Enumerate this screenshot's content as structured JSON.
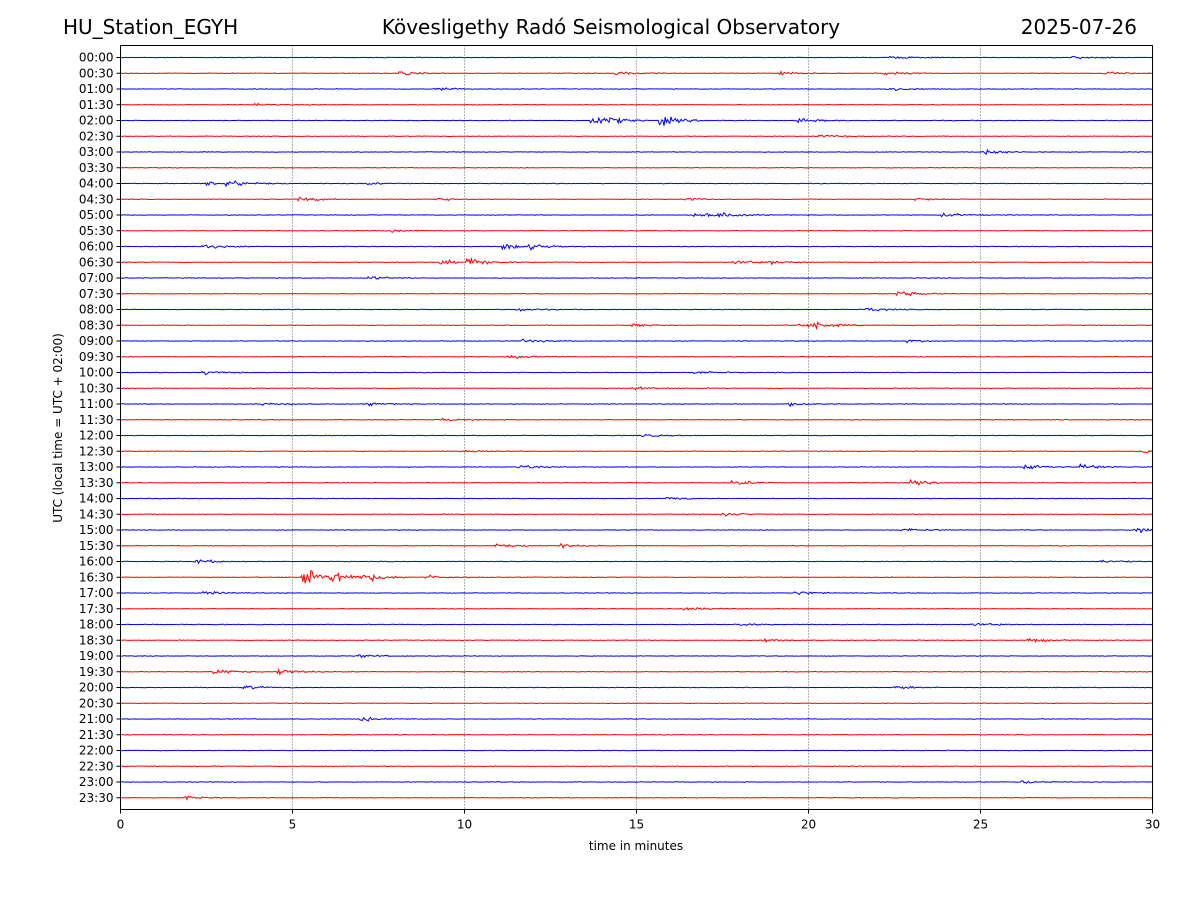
{
  "header": {
    "station": "HU_Station_EGYH",
    "title": "Kövesligethy Radó Seismological Observatory",
    "date": "2025-07-26"
  },
  "chart_data": {
    "type": "line",
    "xlabel": "time in minutes",
    "ylabel": "UTC (local time = UTC + 02:00)",
    "xlim": [
      0,
      30
    ],
    "x_ticks": [
      "0",
      "5",
      "10",
      "15",
      "20",
      "25",
      "30"
    ],
    "grid": "vertical dotted at 5-minute intervals",
    "trace_colors": [
      "#0000ff",
      "#ff0000"
    ],
    "traces": [
      {
        "label": "00:00",
        "events": [
          [
            22.5,
            0.8
          ],
          [
            27.8,
            0.8
          ]
        ]
      },
      {
        "label": "00:30",
        "events": [
          [
            8.2,
            1.0
          ],
          [
            14.5,
            0.8
          ],
          [
            19.3,
            1.0
          ],
          [
            22.3,
            1.0
          ],
          [
            28.7,
            0.8
          ]
        ]
      },
      {
        "label": "01:00",
        "events": [
          [
            9.2,
            0.8
          ],
          [
            22.4,
            0.9
          ]
        ]
      },
      {
        "label": "01:30",
        "events": [
          [
            4.0,
            0.7
          ]
        ]
      },
      {
        "label": "02:00",
        "events": [
          [
            13.8,
            2.6
          ],
          [
            14.3,
            0.9
          ],
          [
            15.8,
            2.4
          ],
          [
            19.8,
            1.2
          ]
        ]
      },
      {
        "label": "02:30",
        "events": [
          [
            20.4,
            0.9
          ]
        ]
      },
      {
        "label": "03:00",
        "events": [
          [
            25.2,
            1.4
          ]
        ]
      },
      {
        "label": "03:30",
        "events": []
      },
      {
        "label": "04:00",
        "events": [
          [
            3.2,
            1.8
          ],
          [
            2.6,
            0.9
          ],
          [
            7.2,
            0.8
          ]
        ]
      },
      {
        "label": "04:30",
        "events": [
          [
            5.3,
            1.5
          ],
          [
            9.2,
            0.9
          ],
          [
            16.5,
            0.8
          ],
          [
            23.2,
            0.8
          ]
        ]
      },
      {
        "label": "05:00",
        "events": [
          [
            16.8,
            1.8
          ],
          [
            17.5,
            1.2
          ],
          [
            24.0,
            1.0
          ]
        ]
      },
      {
        "label": "05:30",
        "events": [
          [
            8.0,
            0.7
          ]
        ]
      },
      {
        "label": "06:00",
        "events": [
          [
            2.5,
            1.3
          ],
          [
            11.2,
            1.8
          ],
          [
            12.0,
            1.4
          ]
        ]
      },
      {
        "label": "06:30",
        "events": [
          [
            10.2,
            2.2
          ],
          [
            9.4,
            1.3
          ],
          [
            17.9,
            1.4
          ],
          [
            19.0,
            0.9
          ]
        ]
      },
      {
        "label": "07:00",
        "events": [
          [
            7.3,
            0.9
          ]
        ]
      },
      {
        "label": "07:30",
        "events": [
          [
            22.7,
            1.5
          ]
        ]
      },
      {
        "label": "08:00",
        "events": [
          [
            11.6,
            0.9
          ],
          [
            21.8,
            1.0
          ]
        ]
      },
      {
        "label": "08:30",
        "events": [
          [
            15.0,
            0.9
          ],
          [
            19.8,
            1.3
          ],
          [
            20.3,
            1.2
          ]
        ]
      },
      {
        "label": "09:00",
        "events": [
          [
            11.8,
            1.0
          ],
          [
            23.0,
            0.8
          ]
        ]
      },
      {
        "label": "09:30",
        "events": [
          [
            11.4,
            1.0
          ]
        ]
      },
      {
        "label": "10:00",
        "events": [
          [
            2.5,
            1.1
          ],
          [
            16.8,
            0.9
          ]
        ]
      },
      {
        "label": "10:30",
        "events": [
          [
            15.0,
            0.8
          ]
        ]
      },
      {
        "label": "11:00",
        "events": [
          [
            4.2,
            1.3
          ],
          [
            7.2,
            0.9
          ],
          [
            19.5,
            1.0
          ]
        ]
      },
      {
        "label": "11:30",
        "events": [
          [
            9.5,
            0.8
          ]
        ]
      },
      {
        "label": "12:00",
        "events": [
          [
            15.2,
            0.8
          ]
        ]
      },
      {
        "label": "12:30",
        "events": [
          [
            10.0,
            0.8
          ],
          [
            29.8,
            1.3
          ]
        ]
      },
      {
        "label": "13:00",
        "events": [
          [
            11.7,
            1.0
          ],
          [
            26.4,
            1.6
          ],
          [
            28.0,
            1.5
          ]
        ]
      },
      {
        "label": "13:30",
        "events": [
          [
            17.9,
            1.4
          ],
          [
            23.1,
            1.2
          ]
        ]
      },
      {
        "label": "14:00",
        "events": [
          [
            16.0,
            0.8
          ]
        ]
      },
      {
        "label": "14:30",
        "events": [
          [
            17.6,
            1.0
          ]
        ]
      },
      {
        "label": "15:00",
        "events": [
          [
            22.8,
            1.0
          ],
          [
            29.6,
            1.6
          ]
        ]
      },
      {
        "label": "15:30",
        "events": [
          [
            11.0,
            0.9
          ],
          [
            12.8,
            1.0
          ]
        ]
      },
      {
        "label": "16:00",
        "events": [
          [
            2.3,
            1.2
          ],
          [
            28.6,
            1.0
          ]
        ]
      },
      {
        "label": "16:30",
        "events": [
          [
            5.4,
            5.0
          ],
          [
            6.3,
            3.0
          ],
          [
            7.2,
            1.8
          ],
          [
            9.0,
            1.0
          ]
        ]
      },
      {
        "label": "17:00",
        "events": [
          [
            2.5,
            0.9
          ],
          [
            19.7,
            1.1
          ]
        ]
      },
      {
        "label": "17:30",
        "events": [
          [
            16.5,
            1.0
          ]
        ]
      },
      {
        "label": "18:00",
        "events": [
          [
            18.0,
            0.8
          ],
          [
            24.8,
            1.3
          ]
        ]
      },
      {
        "label": "18:30",
        "events": [
          [
            18.8,
            1.0
          ],
          [
            26.5,
            1.2
          ]
        ]
      },
      {
        "label": "19:00",
        "events": [
          [
            7.0,
            0.9
          ]
        ]
      },
      {
        "label": "19:30",
        "events": [
          [
            2.8,
            1.7
          ],
          [
            4.7,
            1.7
          ]
        ]
      },
      {
        "label": "20:00",
        "events": [
          [
            3.7,
            0.9
          ],
          [
            22.6,
            1.0
          ]
        ]
      },
      {
        "label": "20:30",
        "events": []
      },
      {
        "label": "21:00",
        "events": [
          [
            7.1,
            1.1
          ]
        ]
      },
      {
        "label": "21:30",
        "events": []
      },
      {
        "label": "22:00",
        "events": []
      },
      {
        "label": "22:30",
        "events": []
      },
      {
        "label": "23:00",
        "events": [
          [
            26.3,
            0.8
          ]
        ]
      },
      {
        "label": "23:30",
        "events": [
          [
            2.0,
            0.7
          ]
        ]
      }
    ]
  }
}
